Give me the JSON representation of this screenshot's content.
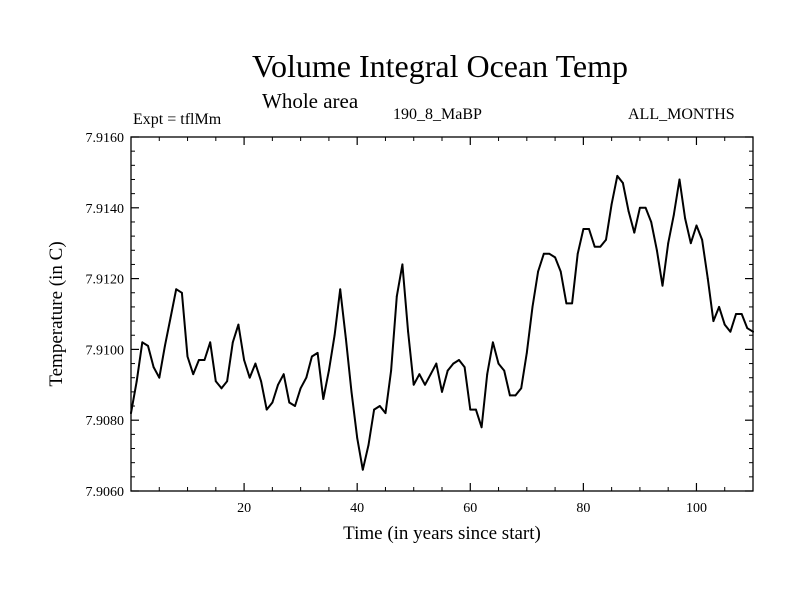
{
  "header": {
    "title": "Volume Integral Ocean Temp",
    "subtitle": "Whole area",
    "expt_label": "Expt = tflMm",
    "case_label": "190_8_MaBP",
    "months_label": "ALL_MONTHS"
  },
  "chart_data": {
    "type": "line",
    "title": "Volume Integral Ocean Temp",
    "xlabel": "Time (in years since start)",
    "ylabel": "Temperature (in C)",
    "xlim": [
      0,
      110
    ],
    "ylim": [
      7.906,
      7.916
    ],
    "xticks": [
      20,
      40,
      60,
      80,
      100
    ],
    "xtick_labels": [
      "20",
      "40",
      "60",
      "80",
      "100"
    ],
    "yticks": [
      7.906,
      7.908,
      7.91,
      7.912,
      7.914,
      7.916
    ],
    "ytick_labels": [
      "7.9060",
      "7.9080",
      "7.9100",
      "7.9120",
      "7.9140",
      "7.9160"
    ],
    "grid": false,
    "series": [
      {
        "name": "Volume Integral Ocean Temp",
        "x": [
          0,
          1,
          2,
          3,
          4,
          5,
          6,
          7,
          8,
          9,
          10,
          11,
          12,
          13,
          14,
          15,
          16,
          17,
          18,
          19,
          20,
          21,
          22,
          23,
          24,
          25,
          26,
          27,
          28,
          29,
          30,
          31,
          32,
          33,
          34,
          35,
          36,
          37,
          38,
          39,
          40,
          41,
          42,
          43,
          44,
          45,
          46,
          47,
          48,
          49,
          50,
          51,
          52,
          53,
          54,
          55,
          56,
          57,
          58,
          59,
          60,
          61,
          62,
          63,
          64,
          65,
          66,
          67,
          68,
          69,
          70,
          71,
          72,
          73,
          74,
          75,
          76,
          77,
          78,
          79,
          80,
          81,
          82,
          83,
          84,
          85,
          86,
          87,
          88,
          89,
          90,
          91,
          92,
          93,
          94,
          95,
          96,
          97,
          98,
          99,
          100,
          101,
          102,
          103,
          104,
          105,
          106,
          107,
          108,
          109,
          110
        ],
        "values": [
          7.9082,
          7.9091,
          7.9102,
          7.9101,
          7.9095,
          7.9092,
          7.9101,
          7.9109,
          7.9117,
          7.9116,
          7.9098,
          7.9093,
          7.9097,
          7.9097,
          7.9102,
          7.9091,
          7.9089,
          7.9091,
          7.9102,
          7.9107,
          7.9097,
          7.9092,
          7.9096,
          7.9091,
          7.9083,
          7.9085,
          7.909,
          7.9093,
          7.9085,
          7.9084,
          7.9089,
          7.9092,
          7.9098,
          7.9099,
          7.9086,
          7.9094,
          7.9104,
          7.9117,
          7.9103,
          7.9088,
          7.9075,
          7.9066,
          7.9073,
          7.9083,
          7.9084,
          7.9082,
          7.9094,
          7.9115,
          7.9124,
          7.9105,
          7.909,
          7.9093,
          7.909,
          7.9093,
          7.9096,
          7.9088,
          7.9094,
          7.9096,
          7.9097,
          7.9095,
          7.9083,
          7.9083,
          7.9078,
          7.9093,
          7.9102,
          7.9096,
          7.9094,
          7.9087,
          7.9087,
          7.9089,
          7.9099,
          7.9112,
          7.9122,
          7.9127,
          7.9127,
          7.9126,
          7.9122,
          7.9113,
          7.9113,
          7.9127,
          7.9134,
          7.9134,
          7.9129,
          7.9129,
          7.9131,
          7.9141,
          7.9149,
          7.9147,
          7.9139,
          7.9133,
          7.914,
          7.914,
          7.9136,
          7.9128,
          7.9118,
          7.913,
          7.9138,
          7.9148,
          7.9137,
          7.913,
          7.9135,
          7.9131,
          7.912,
          7.9108,
          7.9112,
          7.9107,
          7.9105,
          7.911,
          7.911,
          7.9106,
          7.9105
        ]
      }
    ]
  }
}
